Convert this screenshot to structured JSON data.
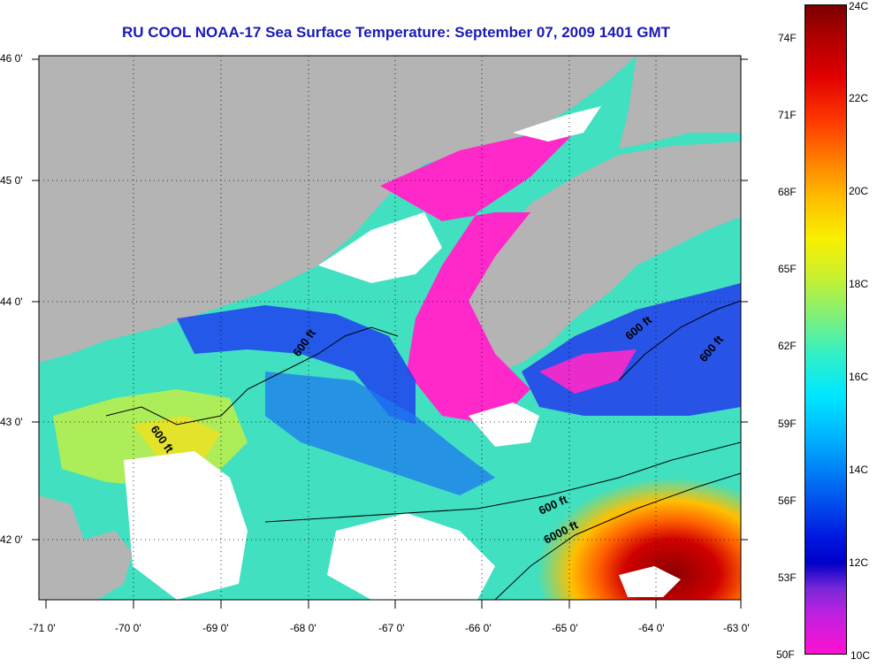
{
  "title": "RU COOL  NOAA-17  Sea Surface Temperature:  September 07, 2009 1401 GMT",
  "map": {
    "lat_labels": [
      "46 0'",
      "45 0'",
      "44 0'",
      "43 0'",
      "42 0'"
    ],
    "lon_labels": [
      "-71 0'",
      "-70 0'",
      "-69 0'",
      "-68 0'",
      "-67 0'",
      "-66 0'",
      "-65 0'",
      "-64 0'",
      "-63 0'"
    ],
    "lat_range": [
      41.5,
      46.0
    ],
    "lon_range": [
      -71.0,
      -63.0
    ],
    "contour_labels": [
      "600 ft",
      "600 ft",
      "600 ft",
      "600 ft",
      "600 ft",
      "6000 ft"
    ],
    "colors": {
      "land": "#b4b4b4",
      "cloud": "#ffffff",
      "axis": "#000000"
    }
  },
  "colorbar": {
    "fahrenheit_labels": [
      "74F",
      "71F",
      "68F",
      "65F",
      "62F",
      "59F",
      "56F",
      "53F",
      "50F"
    ],
    "celsius_labels": [
      "24C",
      "22C",
      "20C",
      "18C",
      "16C",
      "14C",
      "12C",
      "10C"
    ],
    "range_c": [
      10,
      24
    ]
  }
}
